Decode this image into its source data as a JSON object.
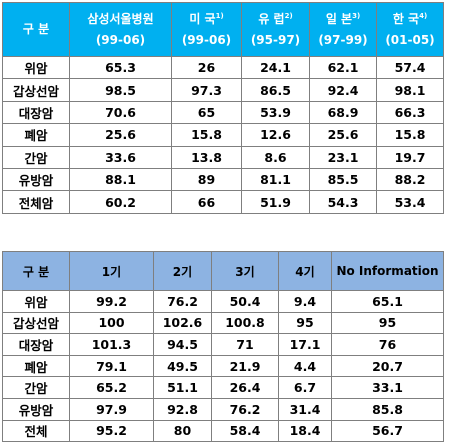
{
  "table1": {
    "headers": [
      {
        "name": "구 분",
        "sup": "",
        "period": ""
      },
      {
        "name": "삼성서울병원",
        "sup": "",
        "period": "(99-06)"
      },
      {
        "name": "미 국",
        "sup": "1)",
        "period": "(99-06)"
      },
      {
        "name": "유 럽",
        "sup": "2)",
        "period": "(95-97)"
      },
      {
        "name": "일 본",
        "sup": "3)",
        "period": "(97-99)"
      },
      {
        "name": "한 국",
        "sup": "4)",
        "period": "(01-05)"
      }
    ],
    "rows": [
      [
        "위암",
        "65.3",
        "26",
        "24.1",
        "62.1",
        "57.4"
      ],
      [
        "갑상선암",
        "98.5",
        "97.3",
        "86.5",
        "92.4",
        "98.1"
      ],
      [
        "대장암",
        "70.6",
        "65",
        "53.9",
        "68.9",
        "66.3"
      ],
      [
        "폐암",
        "25.6",
        "15.8",
        "12.6",
        "25.6",
        "15.8"
      ],
      [
        "간암",
        "33.6",
        "13.8",
        "8.6",
        "23.1",
        "19.7"
      ],
      [
        "유방암",
        "88.1",
        "89",
        "81.1",
        "85.5",
        "88.2"
      ],
      [
        "전체암",
        "60.2",
        "66",
        "51.9",
        "54.3",
        "53.4"
      ]
    ]
  },
  "table2": {
    "headers": [
      "구 분",
      "1기",
      "2기",
      "3기",
      "4기",
      "No Information"
    ],
    "rows": [
      [
        "위암",
        "99.2",
        "76.2",
        "50.4",
        "9.4",
        "65.1"
      ],
      [
        "갑상선암",
        "100",
        "102.6",
        "100.8",
        "95",
        "95"
      ],
      [
        "대장암",
        "101.3",
        "94.5",
        "71",
        "17.1",
        "76"
      ],
      [
        "폐암",
        "79.1",
        "49.5",
        "21.9",
        "4.4",
        "20.7"
      ],
      [
        "간암",
        "65.2",
        "51.1",
        "26.4",
        "6.7",
        "33.1"
      ],
      [
        "유방암",
        "97.9",
        "92.8",
        "76.2",
        "31.4",
        "85.8"
      ],
      [
        "전체",
        "95.2",
        "80",
        "58.4",
        "18.4",
        "56.7"
      ]
    ]
  }
}
